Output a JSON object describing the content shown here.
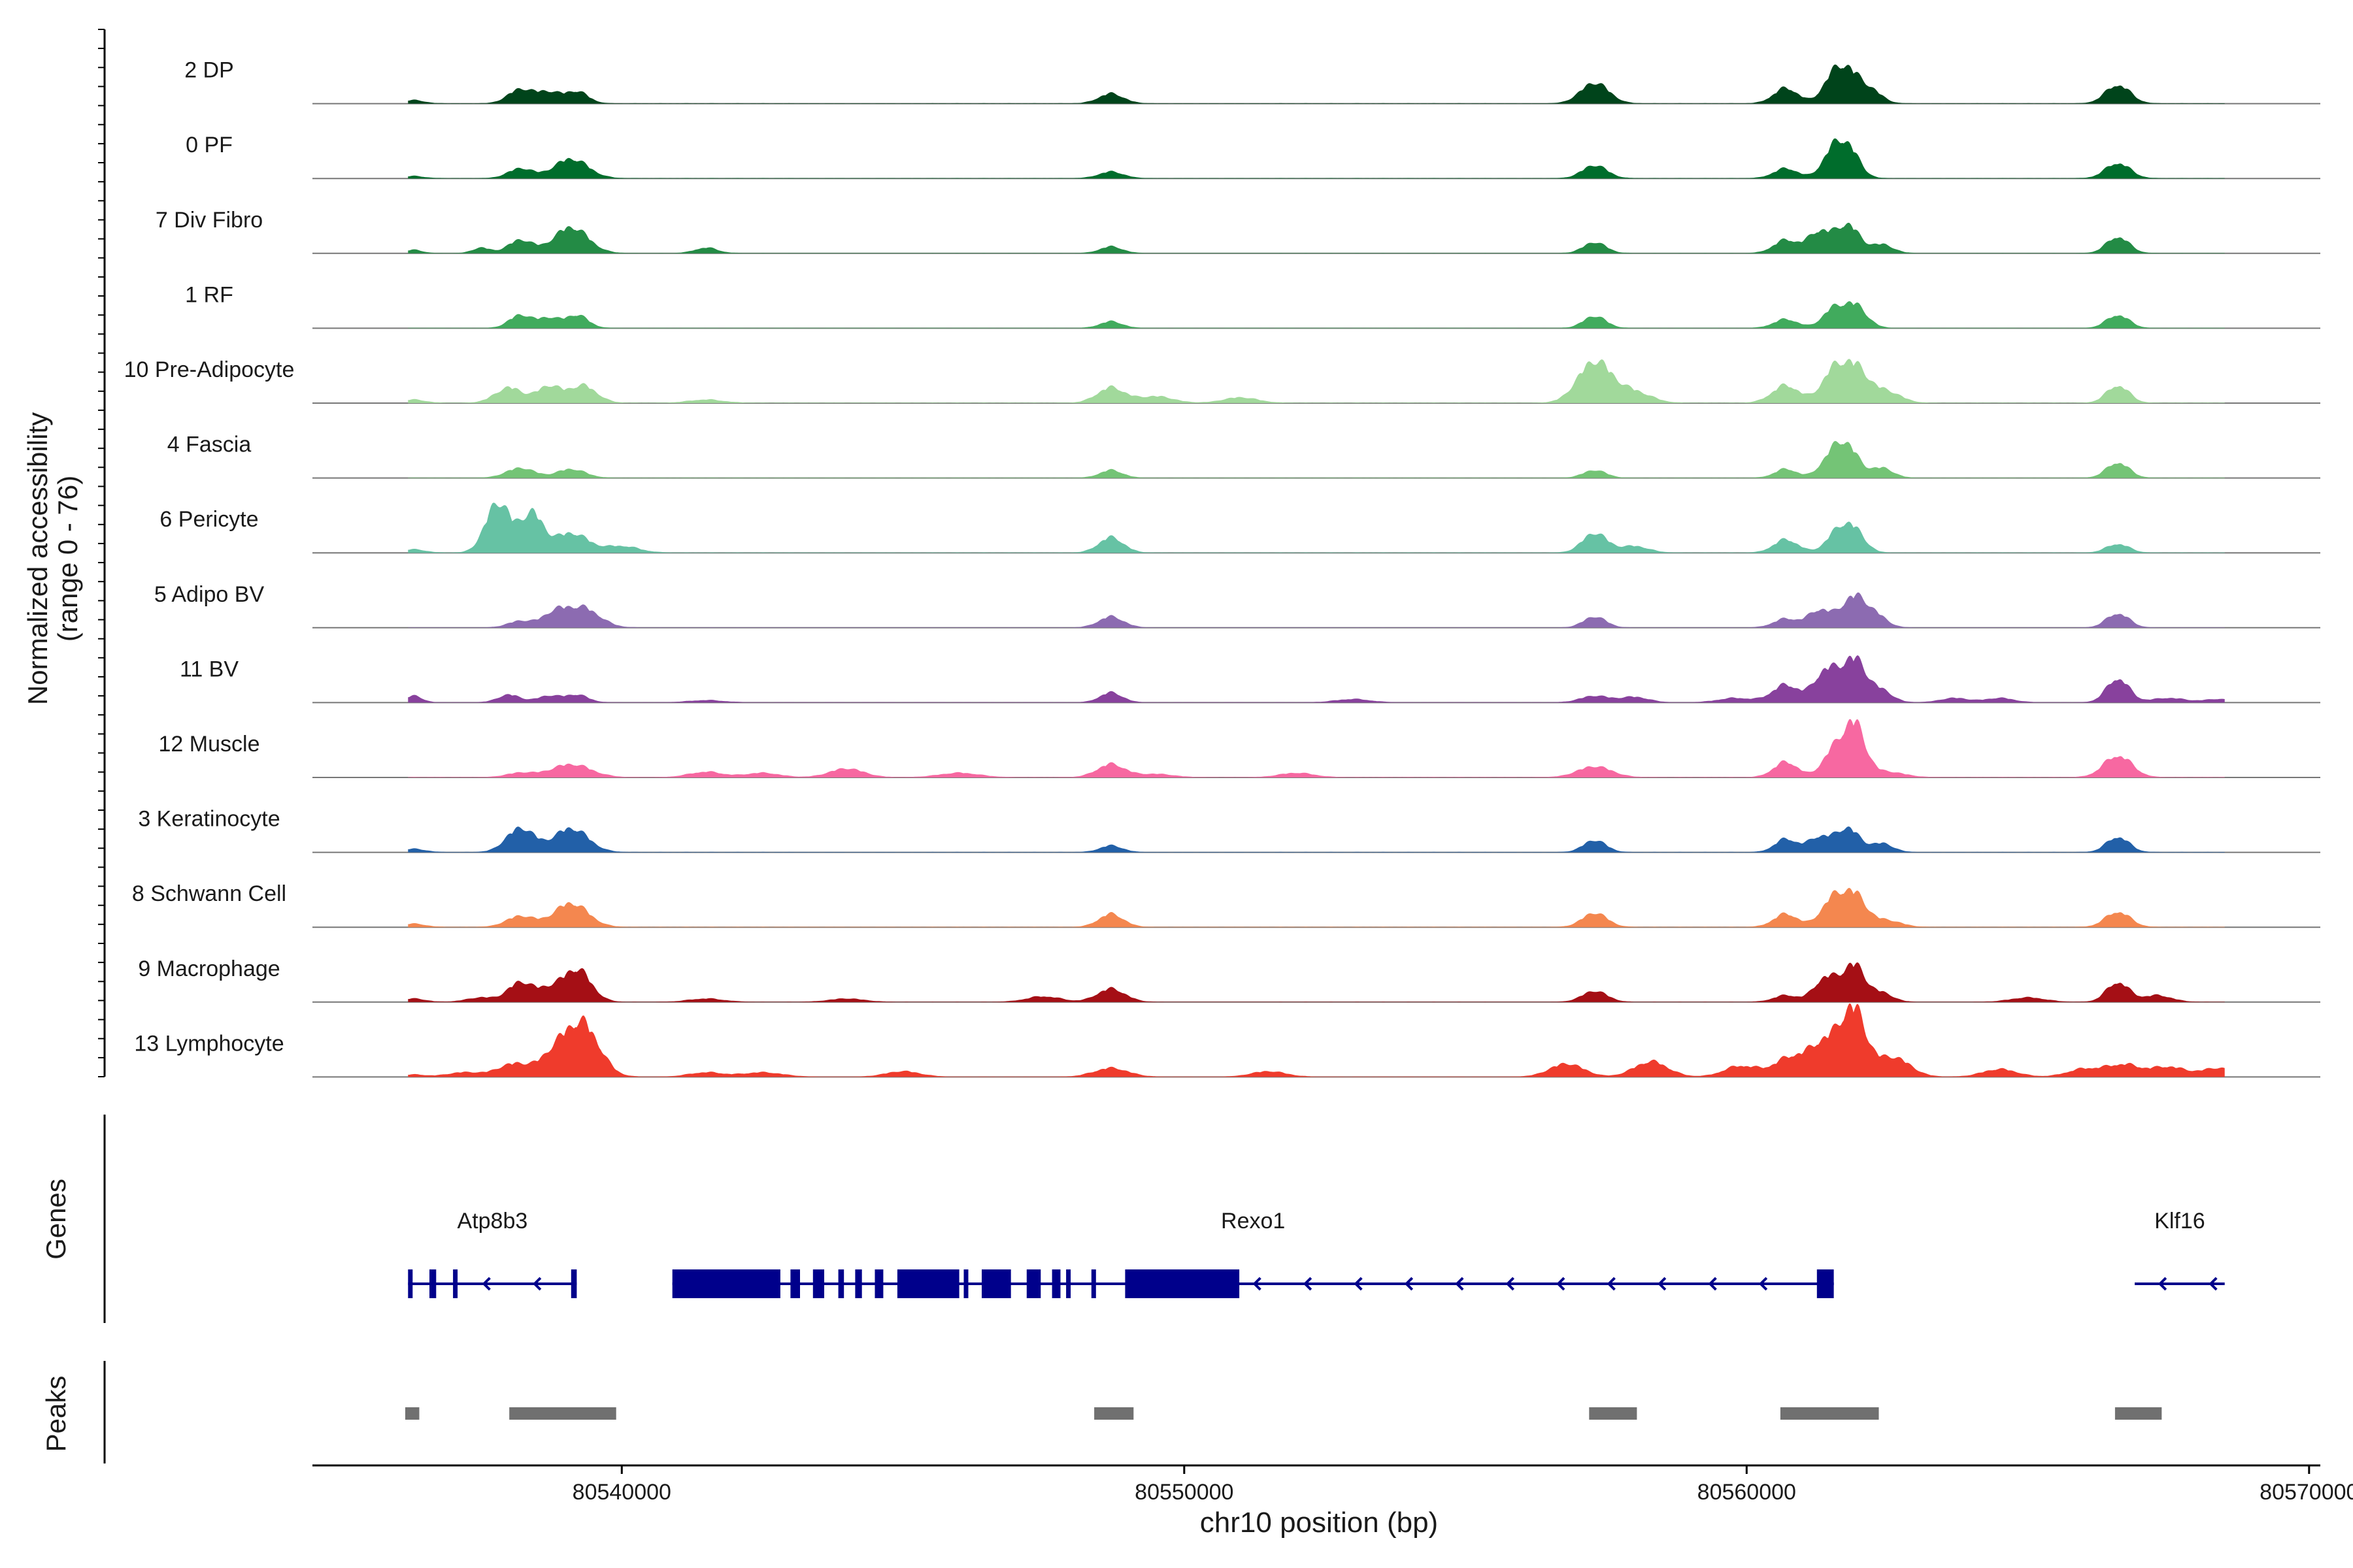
{
  "chart_data": {
    "type": "area",
    "title": "",
    "ylabel": "Normalized accessibility",
    "ylabel_range": "(range 0 - 76)",
    "xlabel": "chr10 position (bp)",
    "xlim": [
      80534500,
      80570200
    ],
    "x_ticks": [
      80540000,
      80550000,
      80560000,
      80570000
    ],
    "x_tick_labels": [
      "80540000",
      "80550000",
      "80560000",
      "80570000"
    ],
    "y_range": [
      0,
      76
    ],
    "tracks": [
      {
        "name": "2 DP",
        "color": "#00441b",
        "peaks": [
          [
            80536300,
            3,
            0.18
          ],
          [
            80538200,
            13,
            0.22
          ],
          [
            80538700,
            10,
            0.2
          ],
          [
            80539200,
            11,
            0.2
          ],
          [
            80548700,
            9,
            0.22
          ],
          [
            80557300,
            19,
            0.25
          ],
          [
            80560700,
            14,
            0.22
          ],
          [
            80561500,
            19,
            0.18
          ],
          [
            80561800,
            28,
            0.2
          ],
          [
            80562200,
            12,
            0.2
          ],
          [
            80566600,
            17,
            0.22
          ]
        ]
      },
      {
        "name": "0 PF",
        "color": "#006d2c",
        "peaks": [
          [
            80536300,
            2,
            0.18
          ],
          [
            80538200,
            9,
            0.22
          ],
          [
            80539100,
            18,
            0.3
          ],
          [
            80548700,
            6,
            0.22
          ],
          [
            80557300,
            12,
            0.22
          ],
          [
            80560700,
            9,
            0.22
          ],
          [
            80561500,
            20,
            0.18
          ],
          [
            80561800,
            28,
            0.2
          ],
          [
            80566600,
            14,
            0.22
          ]
        ]
      },
      {
        "name": "7 Div Fibro",
        "color": "#238b45",
        "peaks": [
          [
            80536300,
            3,
            0.15
          ],
          [
            80537500,
            5,
            0.15
          ],
          [
            80538200,
            12,
            0.22
          ],
          [
            80539100,
            24,
            0.3
          ],
          [
            80541500,
            5,
            0.2
          ],
          [
            80548700,
            6,
            0.2
          ],
          [
            80557300,
            10,
            0.2
          ],
          [
            80560700,
            12,
            0.22
          ],
          [
            80561300,
            20,
            0.2
          ],
          [
            80561800,
            26,
            0.2
          ],
          [
            80562400,
            8,
            0.2
          ],
          [
            80566600,
            15,
            0.2
          ]
        ]
      },
      {
        "name": "1 RF",
        "color": "#41ab5d",
        "peaks": [
          [
            80538200,
            12,
            0.2
          ],
          [
            80538700,
            9,
            0.18
          ],
          [
            80539200,
            12,
            0.2
          ],
          [
            80548700,
            6,
            0.2
          ],
          [
            80557300,
            11,
            0.2
          ],
          [
            80560700,
            8,
            0.22
          ],
          [
            80561500,
            14,
            0.18
          ],
          [
            80561900,
            22,
            0.22
          ],
          [
            80566600,
            12,
            0.2
          ]
        ]
      },
      {
        "name": "10 Pre-Adipocyte",
        "color": "#a1d99b",
        "peaks": [
          [
            80536300,
            3,
            0.2
          ],
          [
            80538000,
            14,
            0.25
          ],
          [
            80538700,
            15,
            0.2
          ],
          [
            80539300,
            16,
            0.25
          ],
          [
            80541500,
            3,
            0.3
          ],
          [
            80548700,
            14,
            0.25
          ],
          [
            80549500,
            6,
            0.3
          ],
          [
            80551000,
            5,
            0.3
          ],
          [
            80557300,
            38,
            0.3
          ],
          [
            80558000,
            10,
            0.3
          ],
          [
            80560700,
            16,
            0.25
          ],
          [
            80561500,
            22,
            0.2
          ],
          [
            80561900,
            34,
            0.25
          ],
          [
            80562500,
            10,
            0.25
          ],
          [
            80566600,
            16,
            0.2
          ]
        ]
      },
      {
        "name": "4 Fascia",
        "color": "#74c476",
        "peaks": [
          [
            80538200,
            9,
            0.25
          ],
          [
            80539100,
            8,
            0.25
          ],
          [
            80548700,
            7,
            0.2
          ],
          [
            80557300,
            7,
            0.2
          ],
          [
            80560700,
            8,
            0.2
          ],
          [
            80561500,
            18,
            0.2
          ],
          [
            80561800,
            26,
            0.2
          ],
          [
            80562400,
            9,
            0.2
          ],
          [
            80566600,
            14,
            0.2
          ]
        ]
      },
      {
        "name": "6 Pericyte",
        "color": "#66c2a4",
        "peaks": [
          [
            80536300,
            3,
            0.2
          ],
          [
            80537800,
            46,
            0.22
          ],
          [
            80538400,
            35,
            0.2
          ],
          [
            80539100,
            18,
            0.3
          ],
          [
            80540000,
            6,
            0.3
          ],
          [
            80548700,
            14,
            0.22
          ],
          [
            80557300,
            18,
            0.22
          ],
          [
            80558000,
            6,
            0.25
          ],
          [
            80560700,
            12,
            0.22
          ],
          [
            80561600,
            16,
            0.2
          ],
          [
            80561900,
            20,
            0.2
          ],
          [
            80566600,
            8,
            0.2
          ]
        ]
      },
      {
        "name": "5 Adipo BV",
        "color": "#8c6bb1",
        "peaks": [
          [
            80538200,
            6,
            0.22
          ],
          [
            80538800,
            12,
            0.22
          ],
          [
            80539300,
            18,
            0.3
          ],
          [
            80548700,
            10,
            0.22
          ],
          [
            80557300,
            10,
            0.2
          ],
          [
            80560700,
            8,
            0.22
          ],
          [
            80561300,
            16,
            0.2
          ],
          [
            80561900,
            28,
            0.22
          ],
          [
            80562300,
            10,
            0.2
          ],
          [
            80566600,
            13,
            0.2
          ]
        ]
      },
      {
        "name": "11 BV",
        "color": "#88419d",
        "peaks": [
          [
            80536300,
            6,
            0.15
          ],
          [
            80538000,
            7,
            0.2
          ],
          [
            80538700,
            6,
            0.2
          ],
          [
            80539200,
            7,
            0.2
          ],
          [
            80541500,
            2,
            0.3
          ],
          [
            80548700,
            9,
            0.2
          ],
          [
            80553000,
            3,
            0.3
          ],
          [
            80557300,
            6,
            0.25
          ],
          [
            80558000,
            5,
            0.25
          ],
          [
            80559800,
            4,
            0.3
          ],
          [
            80560700,
            16,
            0.25
          ],
          [
            80561400,
            28,
            0.2
          ],
          [
            80561900,
            40,
            0.22
          ],
          [
            80562400,
            10,
            0.2
          ],
          [
            80563700,
            4,
            0.25
          ],
          [
            80564500,
            4,
            0.25
          ],
          [
            80566600,
            22,
            0.2
          ],
          [
            80567500,
            4,
            0.3
          ],
          [
            80568400,
            3,
            0.25
          ]
        ]
      },
      {
        "name": "12 Muscle",
        "color": "#f768a1",
        "peaks": [
          [
            80538200,
            4,
            0.25
          ],
          [
            80539100,
            12,
            0.35
          ],
          [
            80541500,
            5,
            0.3
          ],
          [
            80542500,
            4,
            0.3
          ],
          [
            80544000,
            8,
            0.3
          ],
          [
            80546000,
            4,
            0.35
          ],
          [
            80548700,
            12,
            0.25
          ],
          [
            80549500,
            3,
            0.3
          ],
          [
            80552000,
            4,
            0.3
          ],
          [
            80557300,
            10,
            0.3
          ],
          [
            80560700,
            14,
            0.22
          ],
          [
            80561500,
            20,
            0.18
          ],
          [
            80561900,
            50,
            0.2
          ],
          [
            80562500,
            5,
            0.3
          ],
          [
            80566600,
            20,
            0.25
          ]
        ]
      },
      {
        "name": "3 Keratinocyte",
        "color": "#2260a8",
        "peaks": [
          [
            80536300,
            3,
            0.2
          ],
          [
            80538200,
            22,
            0.25
          ],
          [
            80539100,
            22,
            0.3
          ],
          [
            80548700,
            6,
            0.2
          ],
          [
            80557300,
            11,
            0.2
          ],
          [
            80560700,
            12,
            0.2
          ],
          [
            80561300,
            14,
            0.2
          ],
          [
            80561800,
            22,
            0.2
          ],
          [
            80562400,
            8,
            0.2
          ],
          [
            80566600,
            14,
            0.2
          ]
        ]
      },
      {
        "name": "8 Schwann Cell",
        "color": "#f4874f",
        "peaks": [
          [
            80536300,
            3,
            0.2
          ],
          [
            80538200,
            10,
            0.25
          ],
          [
            80539100,
            22,
            0.3
          ],
          [
            80548700,
            12,
            0.22
          ],
          [
            80557300,
            13,
            0.22
          ],
          [
            80560700,
            12,
            0.22
          ],
          [
            80561500,
            22,
            0.2
          ],
          [
            80561900,
            30,
            0.22
          ],
          [
            80562500,
            6,
            0.25
          ],
          [
            80566600,
            14,
            0.22
          ]
        ]
      },
      {
        "name": "9 Macrophage",
        "color": "#a50f15",
        "peaks": [
          [
            80536300,
            3,
            0.2
          ],
          [
            80537500,
            4,
            0.25
          ],
          [
            80538200,
            18,
            0.22
          ],
          [
            80538700,
            10,
            0.2
          ],
          [
            80539200,
            30,
            0.25
          ],
          [
            80541500,
            3,
            0.3
          ],
          [
            80544000,
            3,
            0.3
          ],
          [
            80547500,
            5,
            0.3
          ],
          [
            80548700,
            12,
            0.25
          ],
          [
            80557300,
            10,
            0.22
          ],
          [
            80560700,
            6,
            0.22
          ],
          [
            80561400,
            22,
            0.2
          ],
          [
            80561900,
            34,
            0.2
          ],
          [
            80562400,
            8,
            0.2
          ],
          [
            80565000,
            4,
            0.3
          ],
          [
            80566600,
            18,
            0.2
          ],
          [
            80567300,
            6,
            0.25
          ]
        ]
      },
      {
        "name": "13 Lymphocyte",
        "color": "#ef3b2c",
        "peaks": [
          [
            80536300,
            2,
            0.2
          ],
          [
            80537200,
            4,
            0.3
          ],
          [
            80538100,
            12,
            0.3
          ],
          [
            80538800,
            18,
            0.25
          ],
          [
            80539300,
            48,
            0.3
          ],
          [
            80541500,
            4,
            0.3
          ],
          [
            80542500,
            4,
            0.35
          ],
          [
            80545000,
            5,
            0.3
          ],
          [
            80548700,
            8,
            0.3
          ],
          [
            80551500,
            5,
            0.3
          ],
          [
            80556800,
            12,
            0.3
          ],
          [
            80558300,
            14,
            0.3
          ],
          [
            80559900,
            10,
            0.3
          ],
          [
            80560800,
            18,
            0.3
          ],
          [
            80561400,
            30,
            0.25
          ],
          [
            80561900,
            60,
            0.22
          ],
          [
            80562600,
            18,
            0.3
          ],
          [
            80564500,
            7,
            0.3
          ],
          [
            80566000,
            7,
            0.3
          ],
          [
            80566700,
            11,
            0.3
          ],
          [
            80567500,
            9,
            0.3
          ],
          [
            80568400,
            8,
            0.3
          ]
        ]
      }
    ],
    "genes": [
      {
        "name": "Atp8b3",
        "start": 80536200,
        "end": 80539200,
        "strand": "-",
        "exons": [
          [
            80536200,
            80536250
          ],
          [
            80536580,
            80536700
          ],
          [
            80537000,
            80537060
          ],
          [
            80539100,
            80539200
          ]
        ]
      },
      {
        "name": "Rexo1",
        "start": 80540900,
        "end": 80561550,
        "strand": "-",
        "exons": [
          [
            80540900,
            80542820
          ],
          [
            80543000,
            80543170
          ],
          [
            80543400,
            80543600
          ],
          [
            80543850,
            80543950
          ],
          [
            80544150,
            80544270
          ],
          [
            80544500,
            80544650
          ],
          [
            80544900,
            80546000
          ],
          [
            80546080,
            80546150
          ],
          [
            80546400,
            80546920
          ],
          [
            80547200,
            80547450
          ],
          [
            80547650,
            80547800
          ],
          [
            80547900,
            80547980
          ],
          [
            80548350,
            80548420
          ],
          [
            80548950,
            80550980
          ],
          [
            80561250,
            80561550
          ]
        ]
      },
      {
        "name": "Klf16",
        "start": 80566900,
        "end": 80568500,
        "strand": "-",
        "exons": []
      }
    ],
    "peaks": [
      [
        80536150,
        80536400
      ],
      [
        80538000,
        80539900
      ],
      [
        80548400,
        80549100
      ],
      [
        80557200,
        80558050
      ],
      [
        80560600,
        80562350
      ],
      [
        80566550,
        80567380
      ]
    ],
    "panel_labels": {
      "genes": "Genes",
      "peaks": "Peaks"
    }
  }
}
